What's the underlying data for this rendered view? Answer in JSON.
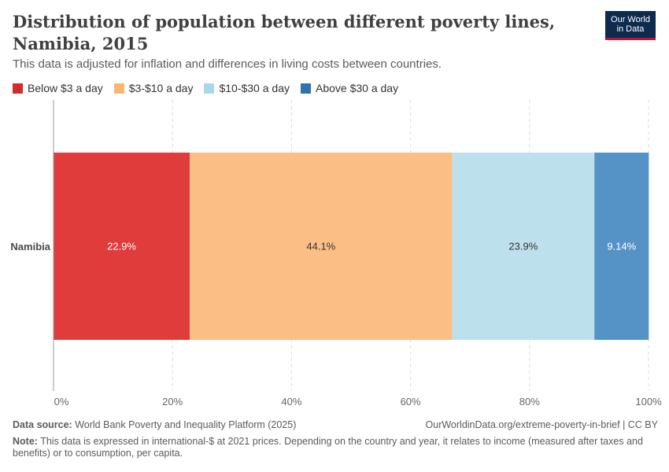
{
  "header": {
    "title": "Distribution of population between different poverty lines, Namibia, 2015",
    "subtitle": "This data is adjusted for inflation and differences in living costs between countries.",
    "logo_line1": "Our World",
    "logo_line2": "in Data"
  },
  "chart_data": {
    "type": "bar",
    "orientation": "horizontal",
    "stacked": true,
    "categories": [
      "Namibia"
    ],
    "series": [
      {
        "name": "Below $3 a day",
        "values": [
          22.9
        ],
        "label": "22.9%",
        "color": "#e03c3c",
        "label_color": "#ffffff"
      },
      {
        "name": "$3-$10 a day",
        "values": [
          44.1
        ],
        "label": "44.1%",
        "color": "#fbbf85",
        "label_color": "#333333"
      },
      {
        "name": "$10-$30 a day",
        "values": [
          23.9
        ],
        "label": "23.9%",
        "color": "#bde1ec",
        "label_color": "#333333"
      },
      {
        "name": "Above $30 a day",
        "values": [
          9.14
        ],
        "label": "9.14%",
        "color": "#5593c7",
        "label_color": "#ffffff"
      }
    ],
    "legend_colors": [
      "#d42a2a",
      "#f9b66e",
      "#a7d8ea",
      "#2f72b0"
    ],
    "xlim": [
      0,
      100
    ],
    "xticks": [
      0,
      20,
      40,
      60,
      80,
      100
    ],
    "xtick_labels": [
      "0%",
      "20%",
      "40%",
      "60%",
      "80%",
      "100%"
    ],
    "grid": "vertical-dashed",
    "legend_position": "top-left"
  },
  "footer": {
    "source_label": "Data source:",
    "source_text": "World Bank Poverty and Inequality Platform (2025)",
    "url": "OurWorldinData.org/extreme-poverty-in-brief | CC BY",
    "note_label": "Note:",
    "note_text": "This data is expressed in international-$ at 2021 prices. Depending on the country and year, it relates to income (measured after taxes and benefits) or to consumption, per capita."
  }
}
